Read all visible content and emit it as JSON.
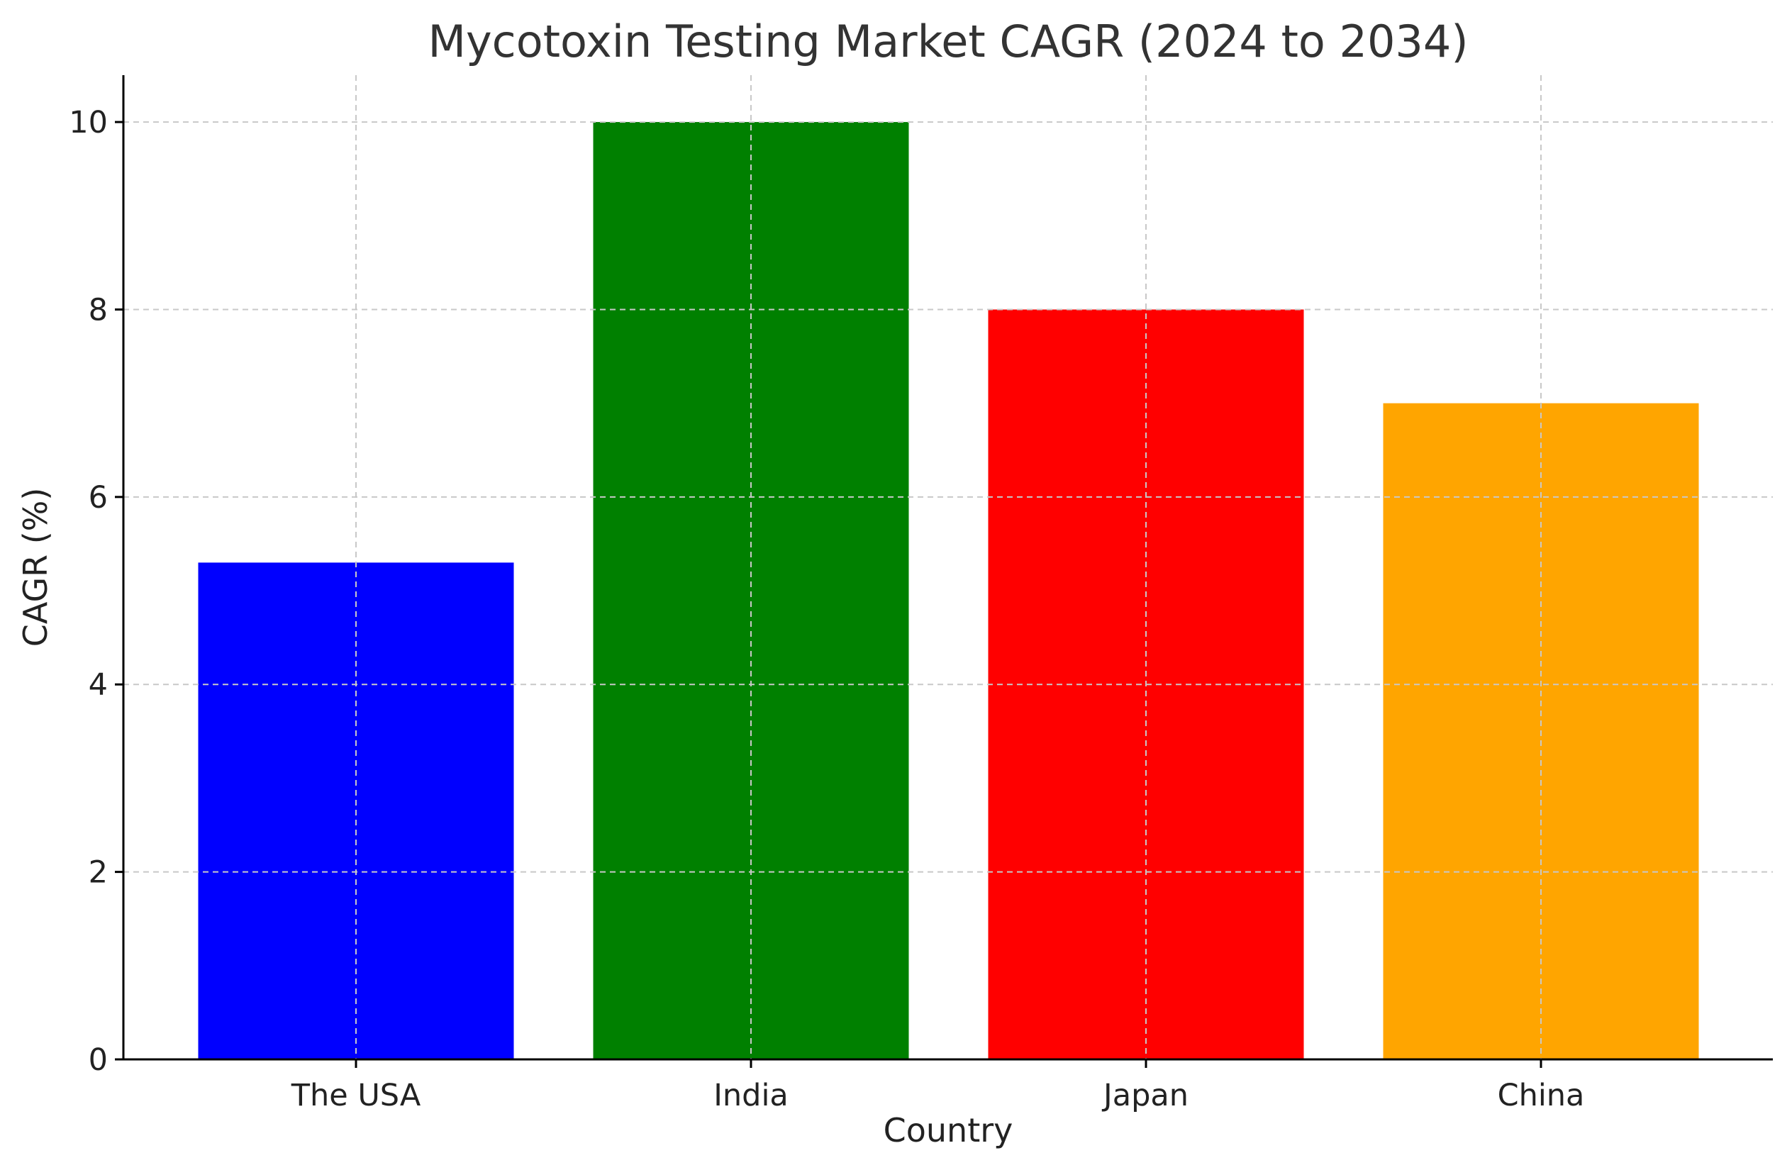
{
  "chart_data": {
    "type": "bar",
    "title": "Mycotoxin Testing Market CAGR (2024 to 2034)",
    "xlabel": "Country",
    "ylabel": "CAGR (%)",
    "categories": [
      "The USA",
      "India",
      "Japan",
      "China"
    ],
    "values": [
      5.3,
      10,
      8,
      7
    ],
    "colors": [
      "#0000ff",
      "#008000",
      "#ff0000",
      "#ffa500"
    ],
    "ylim": [
      0,
      10.5
    ],
    "yticks": [
      0,
      2,
      4,
      6,
      8,
      10
    ],
    "grid": true
  }
}
